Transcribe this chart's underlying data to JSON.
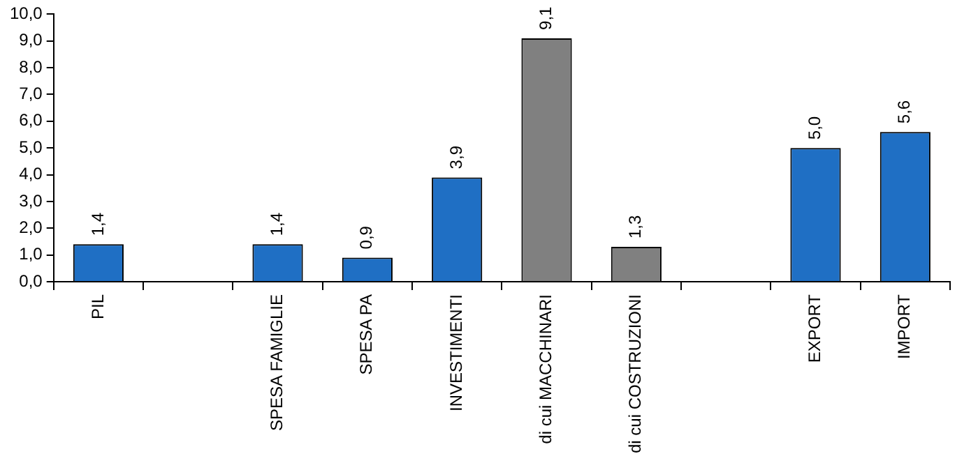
{
  "chart_data": {
    "type": "bar",
    "categories": [
      "PIL",
      null,
      "SPESA FAMIGLIE",
      "SPESA PA",
      "INVESTIMENTI",
      "di cui MACCHINARI",
      "di cui COSTRUZIONI",
      null,
      "EXPORT",
      "IMPORT"
    ],
    "values": [
      1.4,
      null,
      1.4,
      0.9,
      3.9,
      9.1,
      1.3,
      null,
      5.0,
      5.6
    ],
    "colors": [
      "#1f6fc4",
      "#1f6fc4",
      "#1f6fc4",
      "#1f6fc4",
      "#1f6fc4",
      "#808080",
      "#808080",
      "#1f6fc4",
      "#1f6fc4",
      "#1f6fc4"
    ],
    "value_labels": [
      "1,4",
      null,
      "1,4",
      "0,9",
      "3,9",
      "9,1",
      "1,3",
      null,
      "5,0",
      "5,6"
    ],
    "ylim": [
      0,
      10
    ],
    "yticks": [
      {
        "value": 0,
        "label": "0,0"
      },
      {
        "value": 1,
        "label": "1,0"
      },
      {
        "value": 2,
        "label": "2,0"
      },
      {
        "value": 3,
        "label": "3,0"
      },
      {
        "value": 4,
        "label": "4,0"
      },
      {
        "value": 5,
        "label": "5,0"
      },
      {
        "value": 6,
        "label": "6,0"
      },
      {
        "value": 7,
        "label": "7,0"
      },
      {
        "value": 8,
        "label": "8,0"
      },
      {
        "value": 9,
        "label": "9,0"
      },
      {
        "value": 10,
        "label": "10,0"
      }
    ],
    "grid": false,
    "legend": false
  }
}
